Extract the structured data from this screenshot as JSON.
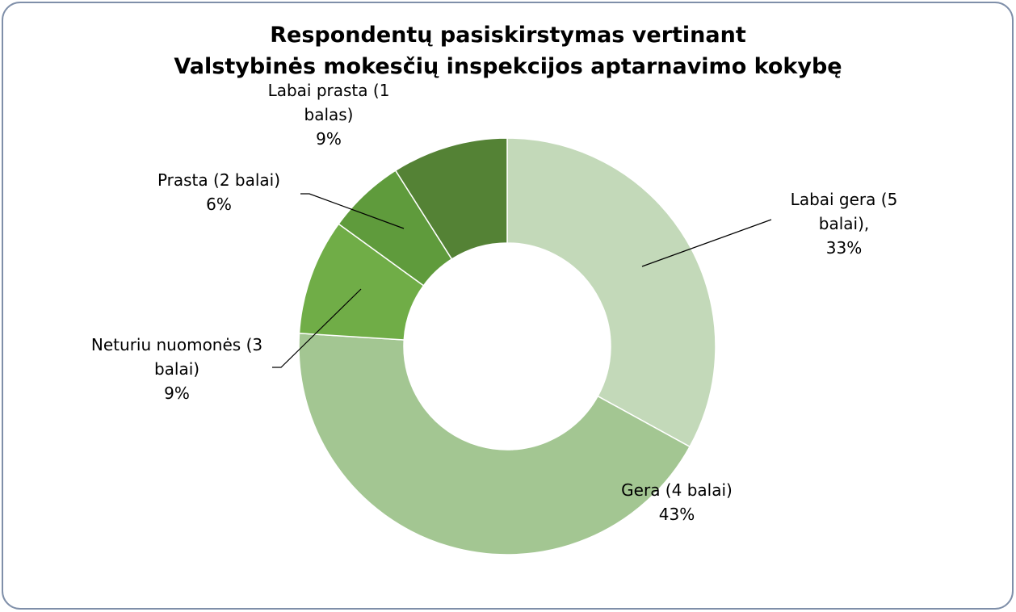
{
  "chart_data": {
    "type": "donut",
    "title": "Respondentų pasiskirstymas vertinant\nValstybinės mokesčių inspekcijos aptarnavimo kokybę",
    "categories": [
      "Labai gera (5 balai),",
      "Gera (4 balai)",
      "Neturiu nuomonės (3 balai)",
      "Prasta (2 balai)",
      "Labai prasta (1 balas)"
    ],
    "values": [
      33,
      43,
      9,
      6,
      9
    ],
    "value_labels": [
      "33%",
      "43%",
      "9%",
      "6%",
      "9%"
    ],
    "colors": [
      "#c3d9b9",
      "#a3c692",
      "#70ad47",
      "#5f9b3c",
      "#548235"
    ]
  }
}
